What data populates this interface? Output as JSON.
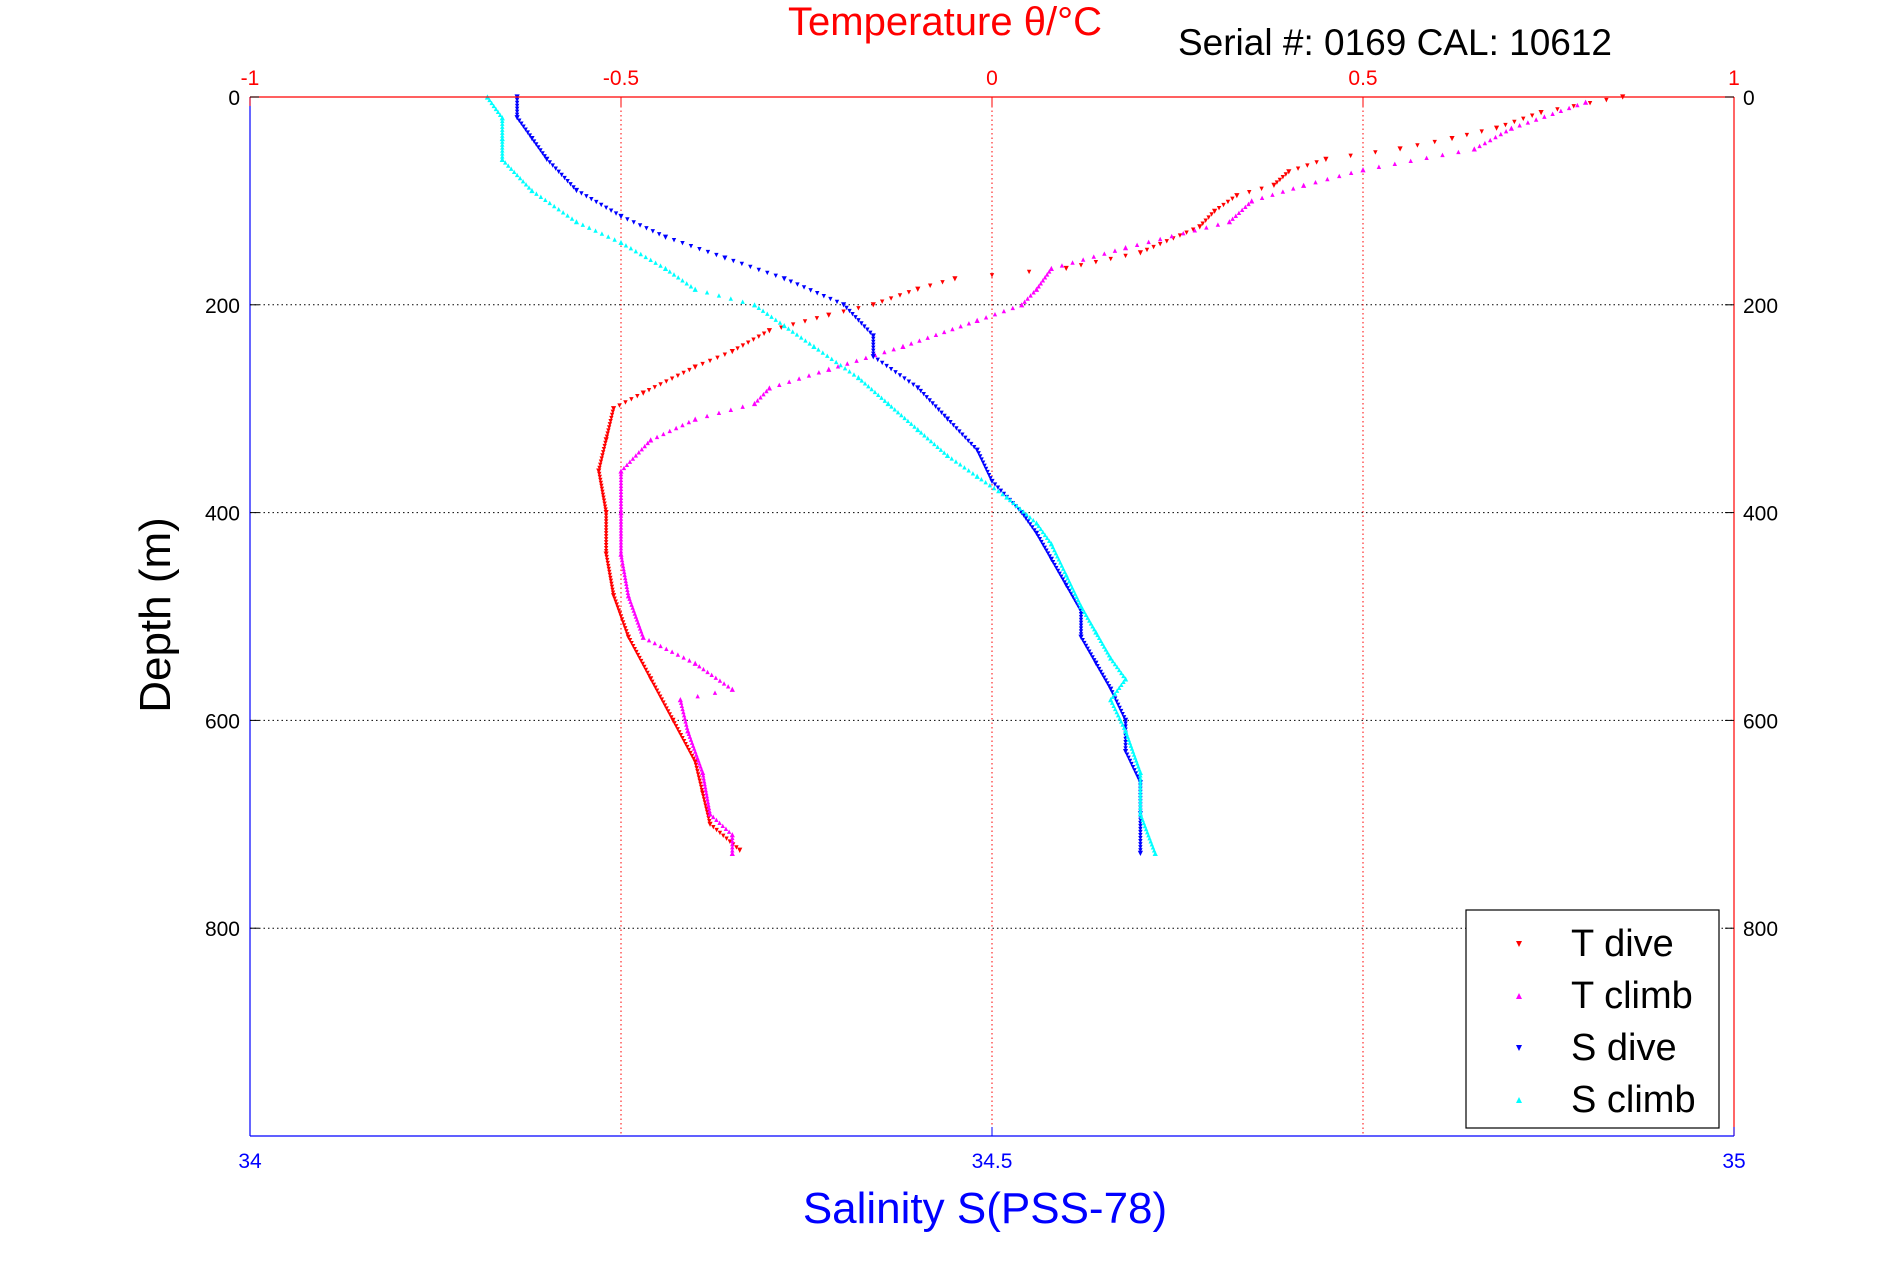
{
  "chart_data": {
    "type": "scatter",
    "title": "Temperature θ/°C",
    "subtitle": "Serial #: 0169 CAL: 10612",
    "ylabel": "Depth (m)",
    "xlabel": "Salinity S(PSS-78)",
    "top_axis": {
      "label": "Temperature θ/°C",
      "range": [
        -1,
        1
      ],
      "ticks": [
        -1,
        -0.5,
        0,
        0.5,
        1
      ],
      "tick_labels": [
        "-1",
        "-0.5",
        "0",
        "0.5",
        "1"
      ],
      "color": "#ff0000"
    },
    "bottom_axis": {
      "label": "Salinity S(PSS-78)",
      "range": [
        34,
        35
      ],
      "ticks": [
        34,
        34.5,
        35
      ],
      "tick_labels": [
        "34",
        "34.5",
        "35"
      ],
      "color": "#0000ff"
    },
    "y_axis": {
      "range": [
        0,
        1000
      ],
      "reversed": true,
      "ticks": [
        0,
        200,
        400,
        600,
        800
      ],
      "tick_labels": [
        "0",
        "200",
        "400",
        "600",
        "800"
      ]
    },
    "grid": true,
    "legend_position": "bottom-right",
    "series": [
      {
        "name": "T dive",
        "axis": "top",
        "color": "#ff0000",
        "marker": "triangle-down",
        "points": [
          [
            0.85,
            0
          ],
          [
            0.74,
            15
          ],
          [
            0.68,
            30
          ],
          [
            0.62,
            40
          ],
          [
            0.55,
            50
          ],
          [
            0.45,
            60
          ],
          [
            0.4,
            72
          ],
          [
            0.38,
            85
          ],
          [
            0.33,
            95
          ],
          [
            0.3,
            110
          ],
          [
            0.28,
            125
          ],
          [
            0.2,
            150
          ],
          [
            0.1,
            165
          ],
          [
            -0.05,
            175
          ],
          [
            -0.1,
            185
          ],
          [
            -0.16,
            200
          ],
          [
            -0.22,
            210
          ],
          [
            -0.3,
            225
          ],
          [
            -0.35,
            245
          ],
          [
            -0.4,
            260
          ],
          [
            -0.47,
            285
          ],
          [
            -0.51,
            300
          ],
          [
            -0.52,
            330
          ],
          [
            -0.53,
            360
          ],
          [
            -0.52,
            400
          ],
          [
            -0.52,
            440
          ],
          [
            -0.51,
            480
          ],
          [
            -0.49,
            520
          ],
          [
            -0.46,
            560
          ],
          [
            -0.43,
            600
          ],
          [
            -0.4,
            640
          ],
          [
            -0.39,
            670
          ],
          [
            -0.38,
            700
          ],
          [
            -0.34,
            725
          ]
        ]
      },
      {
        "name": "T climb",
        "axis": "top",
        "color": "#ff00ff",
        "marker": "triangle-up",
        "points": [
          [
            0.8,
            5
          ],
          [
            0.7,
            30
          ],
          [
            0.65,
            50
          ],
          [
            0.5,
            70
          ],
          [
            0.42,
            85
          ],
          [
            0.35,
            100
          ],
          [
            0.32,
            120
          ],
          [
            0.18,
            145
          ],
          [
            0.08,
            165
          ],
          [
            0.06,
            185
          ],
          [
            0.04,
            200
          ],
          [
            -0.02,
            215
          ],
          [
            -0.12,
            240
          ],
          [
            -0.22,
            262
          ],
          [
            -0.3,
            280
          ],
          [
            -0.32,
            295
          ],
          [
            -0.4,
            310
          ],
          [
            -0.46,
            330
          ],
          [
            -0.5,
            360
          ],
          [
            -0.5,
            400
          ],
          [
            -0.5,
            440
          ],
          [
            -0.49,
            480
          ],
          [
            -0.47,
            520
          ],
          [
            -0.4,
            545
          ],
          [
            -0.35,
            570
          ],
          [
            -0.42,
            580
          ],
          [
            -0.41,
            610
          ],
          [
            -0.39,
            650
          ],
          [
            -0.38,
            690
          ],
          [
            -0.35,
            710
          ],
          [
            -0.35,
            728
          ]
        ]
      },
      {
        "name": "S dive",
        "axis": "bottom",
        "color": "#0000ff",
        "marker": "triangle-down",
        "points": [
          [
            34.18,
            0
          ],
          [
            34.18,
            20
          ],
          [
            34.19,
            40
          ],
          [
            34.2,
            60
          ],
          [
            34.22,
            90
          ],
          [
            34.25,
            115
          ],
          [
            34.28,
            135
          ],
          [
            34.32,
            155
          ],
          [
            34.36,
            175
          ],
          [
            34.4,
            200
          ],
          [
            34.42,
            230
          ],
          [
            34.42,
            250
          ],
          [
            34.45,
            280
          ],
          [
            34.47,
            310
          ],
          [
            34.49,
            340
          ],
          [
            34.5,
            370
          ],
          [
            34.52,
            400
          ],
          [
            34.53,
            420
          ],
          [
            34.54,
            445
          ],
          [
            34.55,
            470
          ],
          [
            34.56,
            495
          ],
          [
            34.56,
            520
          ],
          [
            34.57,
            545
          ],
          [
            34.58,
            570
          ],
          [
            34.59,
            600
          ],
          [
            34.59,
            630
          ],
          [
            34.6,
            660
          ],
          [
            34.6,
            690
          ],
          [
            34.6,
            728
          ]
        ]
      },
      {
        "name": "S climb",
        "axis": "bottom",
        "color": "#00ffff",
        "marker": "triangle-up",
        "points": [
          [
            34.16,
            0
          ],
          [
            34.17,
            20
          ],
          [
            34.17,
            40
          ],
          [
            34.17,
            60
          ],
          [
            34.19,
            90
          ],
          [
            34.22,
            120
          ],
          [
            34.25,
            140
          ],
          [
            34.28,
            165
          ],
          [
            34.3,
            185
          ],
          [
            34.34,
            200
          ],
          [
            34.36,
            220
          ],
          [
            34.38,
            240
          ],
          [
            34.41,
            270
          ],
          [
            34.43,
            295
          ],
          [
            34.45,
            320
          ],
          [
            34.47,
            345
          ],
          [
            34.49,
            365
          ],
          [
            34.51,
            385
          ],
          [
            34.53,
            410
          ],
          [
            34.54,
            430
          ],
          [
            34.55,
            460
          ],
          [
            34.56,
            490
          ],
          [
            34.57,
            515
          ],
          [
            34.58,
            540
          ],
          [
            34.59,
            560
          ],
          [
            34.58,
            580
          ],
          [
            34.59,
            610
          ],
          [
            34.6,
            650
          ],
          [
            34.6,
            690
          ],
          [
            34.61,
            728
          ]
        ]
      }
    ]
  }
}
